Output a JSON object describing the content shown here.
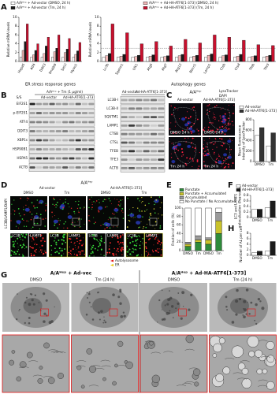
{
  "panel_labels": [
    "A",
    "B",
    "C",
    "D",
    "E",
    "F",
    "G",
    "H"
  ],
  "chart_data": [
    {
      "type": "bar",
      "ylabel": [
        "Relative mRNA levels"
      ],
      "xlabel": "ER stress response genes",
      "categories": [
        "Hspa5",
        "Atf4",
        "Ddit3",
        "Dnajb9",
        "Sel1l",
        "Hyou1"
      ],
      "series": [
        {
          "name": "A/Aᴴᵉᵖ + Ad-vector (DMSO, 24 h)",
          "color": "#ffffff",
          "values": [
            1,
            1,
            1,
            1,
            1,
            1
          ]
        },
        {
          "name": "A/Aᴴᵉᵖ + Ad-HA-ATF6[1-373] (DMSO, 24 h)",
          "color": "#f2b8b8",
          "values": [
            2.5,
            1.5,
            1.8,
            2.2,
            2.0,
            1.6
          ]
        },
        {
          "name": "A/Aᴴᵉᵖ + Ad-vector (Tm, 24 h)",
          "color": "#1a1a1a",
          "values": [
            4.5,
            2.5,
            3.5,
            3.0,
            2.8,
            2.4
          ]
        },
        {
          "name": "A/Aᴴᵉᵖ + Ad-HA-ATF6[1-373] (Tm, 24 h)",
          "color": "#c8102e",
          "values": [
            8.5,
            4.0,
            5.5,
            6.0,
            5.2,
            4.3
          ]
        }
      ],
      "ylim": [
        0,
        10
      ],
      "yticks": [
        0,
        2,
        4,
        6,
        8,
        10
      ]
    },
    {
      "type": "bar",
      "ylabel": [
        "Relative mRNA levels"
      ],
      "xlabel": "Autophagy genes",
      "categories": [
        "Lc3b",
        "Sqstm1",
        "Ulk1",
        "Atg5",
        "Atg7",
        "Atg12",
        "Becn1",
        "Lamp1",
        "Ctsb",
        "Ctsd",
        "Tfeb",
        "Tfe3"
      ],
      "series": [
        {
          "color": "#ffffff",
          "values": [
            1,
            1,
            1,
            1,
            1,
            1,
            1,
            1,
            1,
            1,
            1,
            1
          ]
        },
        {
          "color": "#f2b8b8",
          "values": [
            1.3,
            1.2,
            1.1,
            1.2,
            1.1,
            1.3,
            1.2,
            1.4,
            1.3,
            1.2,
            1.1,
            1.2
          ]
        },
        {
          "color": "#1a1a1a",
          "values": [
            1.8,
            1.6,
            1.4,
            1.5,
            1.3,
            1.6,
            1.4,
            1.7,
            1.5,
            1.6,
            1.3,
            1.4
          ]
        },
        {
          "color": "#c8102e",
          "values": [
            8.5,
            6.5,
            4.0,
            4.5,
            3.5,
            5.0,
            4.2,
            6.0,
            5.5,
            4.8,
            3.8,
            3.6
          ]
        }
      ],
      "ylim": [
        0,
        10
      ],
      "yticks": [
        0,
        2,
        4,
        6,
        8,
        10
      ],
      "reference_line": 3
    },
    {
      "type": "bar",
      "ylabel": [
        "Mean fluorescence",
        "intensity of LysoTracker"
      ],
      "categories": [
        "DMSO",
        "Tm"
      ],
      "series": [
        {
          "name": "Ad-vector",
          "color": "#ffffff",
          "values": [
            500,
            300
          ]
        },
        {
          "name": "Ad-HA-ATF6[1-373]",
          "color": "#333333",
          "values": [
            650,
            550
          ]
        }
      ],
      "ylim": [
        0,
        800
      ],
      "yticks": [
        0,
        200,
        400,
        600,
        800
      ]
    },
    {
      "type": "stacked-bar",
      "ylabel": [
        "Fraction of cells (%)"
      ],
      "categories": [
        "DMSO",
        "Tm",
        "DMSO",
        "Tm"
      ],
      "series": [
        {
          "name": "Punctate",
          "color": "#2e8b3a",
          "values": [
            10,
            20,
            15,
            40
          ]
        },
        {
          "name": "Punctate + Accumulated",
          "color": "#c9c22a",
          "values": [
            5,
            5,
            10,
            30
          ]
        },
        {
          "name": "Accumulated",
          "color": "#9a9a9a",
          "values": [
            5,
            10,
            5,
            20
          ]
        },
        {
          "name": "No Punctate / No Accumulated",
          "color": "#ffffff",
          "values": [
            80,
            65,
            70,
            10
          ]
        }
      ],
      "ylim": [
        0,
        100
      ],
      "yticks": [
        0,
        20,
        40,
        60,
        80,
        100
      ]
    },
    {
      "type": "bar",
      "ylabel": [
        "LC3 and LAMP1",
        "colocalization (Pearson's)"
      ],
      "categories": [
        "DMSO",
        "Tm"
      ],
      "series": [
        {
          "name": "Ad-vector",
          "color": "#ffffff",
          "values": [
            0.3,
            0.35
          ]
        },
        {
          "name": "Ad-HA-ATF6[1-373]",
          "color": "#1a1a1a",
          "values": [
            0.3,
            0.6
          ]
        }
      ],
      "ylim": [
        0,
        0.8
      ],
      "yticks": [
        0,
        0.2,
        0.4,
        0.6,
        0.8
      ]
    },
    {
      "type": "bar",
      "ylabel": [
        "Number of AL per cell"
      ],
      "categories": [
        "DMSO",
        "Tm"
      ],
      "series": [
        {
          "color": "#ffffff",
          "values": [
            1,
            1.5
          ]
        },
        {
          "color": "#1a1a1a",
          "values": [
            1.5,
            5
          ]
        }
      ],
      "ylim": [
        0,
        8
      ],
      "yticks": [
        0,
        2,
        4,
        6,
        8
      ]
    }
  ],
  "blots": {
    "left_genotype": "S/S",
    "header": "A/Aᴴᵉᵖ + Tm (1 μg/ml)",
    "groups": [
      "Ad-vector",
      "Ad-HA-ATF6[1-373]"
    ],
    "left_proteins": [
      "EIF2S1",
      "p-EIF2S1",
      "ATF4",
      "DDIT3",
      "XBP1s",
      "HSP90B1",
      "HSPA5",
      "ACTB"
    ],
    "right_proteins": [
      "LC3B-I",
      "LC3B-II",
      "SQSTM1",
      "LAMP1",
      "CTSB",
      "CTSL",
      "TFEB",
      "TFE3",
      "ACTB"
    ]
  },
  "lysotracker": {
    "title": "A/Aᴴᵉᵖ",
    "groups": [
      "Ad-vector",
      "Ad-HA-ATF6[1-373]"
    ],
    "stains": [
      "LysoTracker",
      "DAPI"
    ],
    "conditions": [
      "DMSO 24 h",
      "Tm 24 h"
    ]
  },
  "immunofluorescence": {
    "title": "A/Aᴴᵉᵖ",
    "groups": [
      "Ad-vector",
      "Ad-HA-ATF6[1-373]"
    ],
    "conditions": [
      "DMSO",
      "Tm"
    ],
    "stain": "LC3B/LAMP1/DAPI",
    "channels": [
      "LC3B",
      "LAMP1"
    ],
    "annotations": [
      "Autolysosome",
      "ER"
    ]
  },
  "electron_microscopy": {
    "groups": [
      "A/Aᴴᵉᵖ + Ad-vec",
      "A/Aᴴᵉᵖ + Ad-HA-ATF6[1-373]"
    ],
    "conditions": [
      "DMSO",
      "Tm (24 h)"
    ]
  }
}
